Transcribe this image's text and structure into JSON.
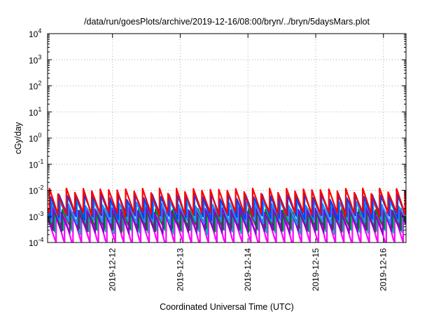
{
  "chart_data": {
    "type": "line",
    "title": "/data/run/goesPlots/archive/2019-12-16/08:00/bryn/../bryn/5daysMars.plot",
    "xlabel": "Coordinated Universal Time (UTC)",
    "ylabel": "cGy/day",
    "y_scale": "log",
    "ylim": [
      0.0001,
      10000
    ],
    "xlim": [
      "2019-12-11T01:00",
      "2019-12-16T08:00"
    ],
    "y_ticks": [
      {
        "value": 0.0001,
        "base": "10",
        "exp": "-4"
      },
      {
        "value": 0.001,
        "base": "10",
        "exp": "-3"
      },
      {
        "value": 0.01,
        "base": "10",
        "exp": "-2"
      },
      {
        "value": 0.1,
        "base": "10",
        "exp": "-1"
      },
      {
        "value": 1,
        "base": "10",
        "exp": "0"
      },
      {
        "value": 10,
        "base": "10",
        "exp": "1"
      },
      {
        "value": 100,
        "base": "10",
        "exp": "2"
      },
      {
        "value": 1000,
        "base": "10",
        "exp": "3"
      },
      {
        "value": 10000,
        "base": "10",
        "exp": "4"
      }
    ],
    "x_ticks": [
      {
        "value": "2019-12-12T00:00",
        "label": "2019-12-12"
      },
      {
        "value": "2019-12-13T00:00",
        "label": "2019-12-13"
      },
      {
        "value": "2019-12-14T00:00",
        "label": "2019-12-14"
      },
      {
        "value": "2019-12-15T00:00",
        "label": "2019-12-15"
      },
      {
        "value": "2019-12-16T00:00",
        "label": "2019-12-16"
      }
    ],
    "grid": true,
    "legend": "none",
    "series": [
      {
        "color": "#ff00ff",
        "pattern": "sawtooth",
        "peak": 0.0012,
        "trough": 8e-05
      },
      {
        "color": "#00b4b4",
        "pattern": "sawtooth",
        "peak": 0.0014,
        "trough": 0.00025
      },
      {
        "color": "#008000",
        "pattern": "sawtooth",
        "peak": 0.0016,
        "trough": 0.0003
      },
      {
        "color": "#8b00c8",
        "pattern": "sawtooth",
        "peak": 0.0018,
        "trough": 0.00025
      },
      {
        "color": "#1e90ff",
        "pattern": "sawtooth",
        "peak": 0.0032,
        "trough": 0.0006
      },
      {
        "color": "#0040ff",
        "pattern": "sawtooth",
        "peak": 0.0058,
        "trough": 0.0009
      },
      {
        "color": "#ff0000",
        "pattern": "sawtooth",
        "peak": 0.0095,
        "trough": 0.0012
      }
    ]
  }
}
